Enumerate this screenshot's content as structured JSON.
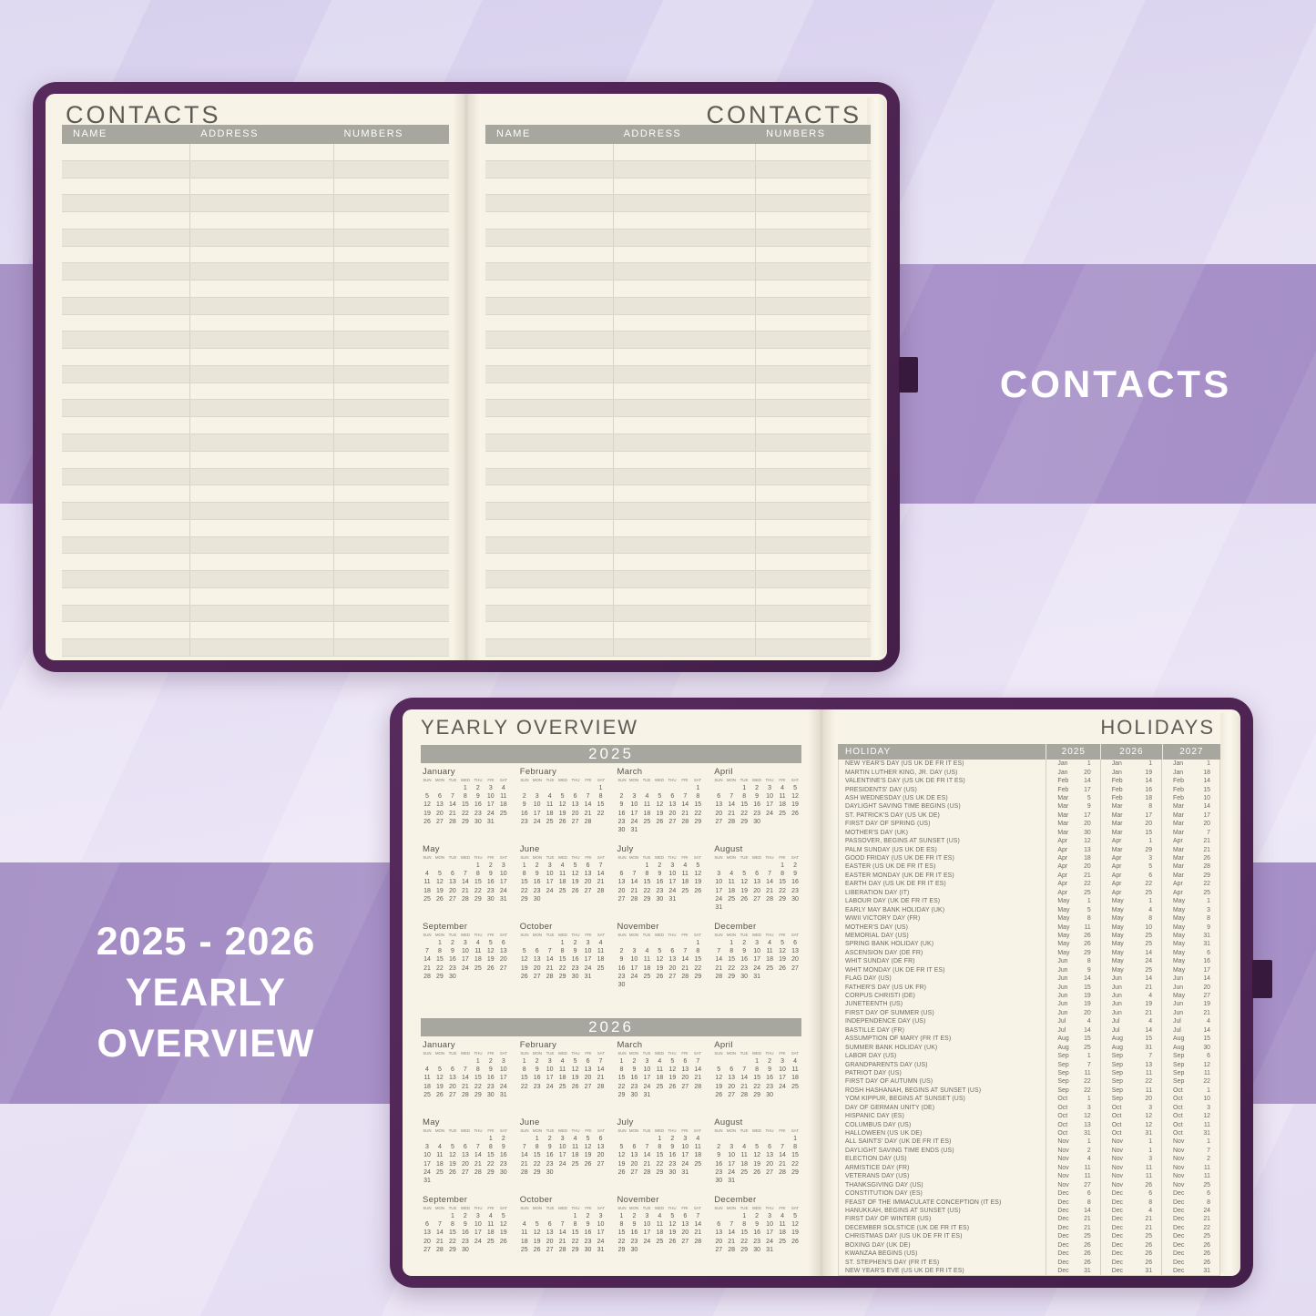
{
  "colors": {
    "cover": "#4f2454",
    "pen_loop": "#38193e",
    "paper": "#f8f3e7",
    "header_gray": "#a8a79f",
    "row_alt": "#eae5d9",
    "band_purple": "#a690c8",
    "title_text": "#5c5b55",
    "body_text": "#6b6a62"
  },
  "captions": {
    "contacts": "CONTACTS",
    "yearly_line1": "2025 - 2026",
    "yearly_line2": "YEARLY OVERVIEW"
  },
  "contacts": {
    "title": "CONTACTS",
    "columns": [
      "NAME",
      "ADDRESS",
      "NUMBERS"
    ],
    "row_count": 30
  },
  "yearly": {
    "title": "YEARLY OVERVIEW",
    "dow": [
      "SUN",
      "MON",
      "TUE",
      "WED",
      "THU",
      "FRI",
      "SAT"
    ],
    "years": [
      {
        "label": "2025",
        "months": [
          {
            "n": "January",
            "o": 3,
            "d": 31
          },
          {
            "n": "February",
            "o": 6,
            "d": 28
          },
          {
            "n": "March",
            "o": 6,
            "d": 31
          },
          {
            "n": "April",
            "o": 2,
            "d": 30
          },
          {
            "n": "May",
            "o": 4,
            "d": 31
          },
          {
            "n": "June",
            "o": 0,
            "d": 30
          },
          {
            "n": "July",
            "o": 2,
            "d": 31
          },
          {
            "n": "August",
            "o": 5,
            "d": 31
          },
          {
            "n": "September",
            "o": 1,
            "d": 30
          },
          {
            "n": "October",
            "o": 3,
            "d": 31
          },
          {
            "n": "November",
            "o": 6,
            "d": 30
          },
          {
            "n": "December",
            "o": 1,
            "d": 31
          }
        ]
      },
      {
        "label": "2026",
        "months": [
          {
            "n": "January",
            "o": 4,
            "d": 31
          },
          {
            "n": "February",
            "o": 0,
            "d": 28
          },
          {
            "n": "March",
            "o": 0,
            "d": 31
          },
          {
            "n": "April",
            "o": 3,
            "d": 30
          },
          {
            "n": "May",
            "o": 5,
            "d": 31
          },
          {
            "n": "June",
            "o": 1,
            "d": 30
          },
          {
            "n": "July",
            "o": 3,
            "d": 31
          },
          {
            "n": "August",
            "o": 6,
            "d": 31
          },
          {
            "n": "September",
            "o": 2,
            "d": 30
          },
          {
            "n": "October",
            "o": 4,
            "d": 31
          },
          {
            "n": "November",
            "o": 0,
            "d": 30
          },
          {
            "n": "December",
            "o": 2,
            "d": 31
          }
        ]
      }
    ]
  },
  "holidays": {
    "title": "HOLIDAYS",
    "columns": [
      "HOLIDAY",
      "2025",
      "2026",
      "2027"
    ],
    "rows": [
      [
        "NEW YEAR'S DAY (US UK DE FR IT ES)",
        "Jan",
        1,
        "Jan",
        1,
        "Jan",
        1
      ],
      [
        "MARTIN LUTHER KING, JR. DAY (US)",
        "Jan",
        20,
        "Jan",
        19,
        "Jan",
        18
      ],
      [
        "VALENTINE'S DAY (US UK DE FR IT ES)",
        "Feb",
        14,
        "Feb",
        14,
        "Feb",
        14
      ],
      [
        "PRESIDENTS' DAY (US)",
        "Feb",
        17,
        "Feb",
        16,
        "Feb",
        15
      ],
      [
        "ASH WEDNESDAY (US UK DE ES)",
        "Mar",
        5,
        "Feb",
        18,
        "Feb",
        10
      ],
      [
        "DAYLIGHT SAVING TIME BEGINS (US)",
        "Mar",
        9,
        "Mar",
        8,
        "Mar",
        14
      ],
      [
        "ST. PATRICK'S DAY (US UK DE)",
        "Mar",
        17,
        "Mar",
        17,
        "Mar",
        17
      ],
      [
        "FIRST DAY OF SPRING (US)",
        "Mar",
        20,
        "Mar",
        20,
        "Mar",
        20
      ],
      [
        "MOTHER'S DAY (UK)",
        "Mar",
        30,
        "Mar",
        15,
        "Mar",
        7
      ],
      [
        "PASSOVER, BEGINS AT SUNSET (US)",
        "Apr",
        12,
        "Apr",
        1,
        "Apr",
        21
      ],
      [
        "PALM SUNDAY (US UK DE ES)",
        "Apr",
        13,
        "Mar",
        29,
        "Mar",
        21
      ],
      [
        "GOOD FRIDAY (US UK DE FR IT ES)",
        "Apr",
        18,
        "Apr",
        3,
        "Mar",
        26
      ],
      [
        "EASTER (US UK DE FR IT ES)",
        "Apr",
        20,
        "Apr",
        5,
        "Mar",
        28
      ],
      [
        "EASTER MONDAY (UK DE FR IT ES)",
        "Apr",
        21,
        "Apr",
        6,
        "Mar",
        29
      ],
      [
        "EARTH DAY (US UK DE FR IT ES)",
        "Apr",
        22,
        "Apr",
        22,
        "Apr",
        22
      ],
      [
        "LIBERATION DAY (IT)",
        "Apr",
        25,
        "Apr",
        25,
        "Apr",
        25
      ],
      [
        "LABOUR DAY (UK DE FR IT ES)",
        "May",
        1,
        "May",
        1,
        "May",
        1
      ],
      [
        "EARLY MAY BANK HOLIDAY (UK)",
        "May",
        5,
        "May",
        4,
        "May",
        3
      ],
      [
        "WWII VICTORY DAY (FR)",
        "May",
        8,
        "May",
        8,
        "May",
        8
      ],
      [
        "MOTHER'S DAY (US)",
        "May",
        11,
        "May",
        10,
        "May",
        9
      ],
      [
        "MEMORIAL DAY (US)",
        "May",
        26,
        "May",
        25,
        "May",
        31
      ],
      [
        "SPRING BANK HOLIDAY (UK)",
        "May",
        26,
        "May",
        25,
        "May",
        31
      ],
      [
        "ASCENSION DAY (DE FR)",
        "May",
        29,
        "May",
        14,
        "May",
        6
      ],
      [
        "WHIT SUNDAY (DE FR)",
        "Jun",
        8,
        "May",
        24,
        "May",
        16
      ],
      [
        "WHIT MONDAY (UK DE FR IT ES)",
        "Jun",
        9,
        "May",
        25,
        "May",
        17
      ],
      [
        "FLAG DAY (US)",
        "Jun",
        14,
        "Jun",
        14,
        "Jun",
        14
      ],
      [
        "FATHER'S DAY (US UK FR)",
        "Jun",
        15,
        "Jun",
        21,
        "Jun",
        20
      ],
      [
        "CORPUS CHRISTI (DE)",
        "Jun",
        19,
        "Jun",
        4,
        "May",
        27
      ],
      [
        "JUNETEENTH (US)",
        "Jun",
        19,
        "Jun",
        19,
        "Jun",
        19
      ],
      [
        "FIRST DAY OF SUMMER (US)",
        "Jun",
        20,
        "Jun",
        21,
        "Jun",
        21
      ],
      [
        "INDEPENDENCE DAY (US)",
        "Jul",
        4,
        "Jul",
        4,
        "Jul",
        4
      ],
      [
        "BASTILLE DAY (FR)",
        "Jul",
        14,
        "Jul",
        14,
        "Jul",
        14
      ],
      [
        "ASSUMPTION OF MARY (FR IT ES)",
        "Aug",
        15,
        "Aug",
        15,
        "Aug",
        15
      ],
      [
        "SUMMER BANK HOLIDAY (UK)",
        "Aug",
        25,
        "Aug",
        31,
        "Aug",
        30
      ],
      [
        "LABOR DAY (US)",
        "Sep",
        1,
        "Sep",
        7,
        "Sep",
        6
      ],
      [
        "GRANDPARENTS DAY (US)",
        "Sep",
        7,
        "Sep",
        13,
        "Sep",
        12
      ],
      [
        "PATRIOT DAY (US)",
        "Sep",
        11,
        "Sep",
        11,
        "Sep",
        11
      ],
      [
        "FIRST DAY OF AUTUMN (US)",
        "Sep",
        22,
        "Sep",
        22,
        "Sep",
        22
      ],
      [
        "ROSH HASHANAH, BEGINS AT SUNSET (US)",
        "Sep",
        22,
        "Sep",
        11,
        "Oct",
        1
      ],
      [
        "YOM KIPPUR, BEGINS AT SUNSET (US)",
        "Oct",
        1,
        "Sep",
        20,
        "Oct",
        10
      ],
      [
        "DAY OF GERMAN UNITY (DE)",
        "Oct",
        3,
        "Oct",
        3,
        "Oct",
        3
      ],
      [
        "HISPANIC DAY (ES)",
        "Oct",
        12,
        "Oct",
        12,
        "Oct",
        12
      ],
      [
        "COLUMBUS DAY (US)",
        "Oct",
        13,
        "Oct",
        12,
        "Oct",
        11
      ],
      [
        "HALLOWEEN (US UK DE)",
        "Oct",
        31,
        "Oct",
        31,
        "Oct",
        31
      ],
      [
        "ALL SAINTS' DAY (UK DE FR IT ES)",
        "Nov",
        1,
        "Nov",
        1,
        "Nov",
        1
      ],
      [
        "DAYLIGHT SAVING TIME ENDS (US)",
        "Nov",
        2,
        "Nov",
        1,
        "Nov",
        7
      ],
      [
        "ELECTION DAY (US)",
        "Nov",
        4,
        "Nov",
        3,
        "Nov",
        2
      ],
      [
        "ARMISTICE DAY (FR)",
        "Nov",
        11,
        "Nov",
        11,
        "Nov",
        11
      ],
      [
        "VETERANS DAY (US)",
        "Nov",
        11,
        "Nov",
        11,
        "Nov",
        11
      ],
      [
        "THANKSGIVING DAY (US)",
        "Nov",
        27,
        "Nov",
        26,
        "Nov",
        25
      ],
      [
        "CONSTITUTION DAY (ES)",
        "Dec",
        6,
        "Dec",
        6,
        "Dec",
        6
      ],
      [
        "FEAST OF THE IMMACULATE CONCEPTION (IT ES)",
        "Dec",
        8,
        "Dec",
        8,
        "Dec",
        8
      ],
      [
        "HANUKKAH, BEGINS AT SUNSET (US)",
        "Dec",
        14,
        "Dec",
        4,
        "Dec",
        24
      ],
      [
        "FIRST DAY OF WINTER (US)",
        "Dec",
        21,
        "Dec",
        21,
        "Dec",
        21
      ],
      [
        "DECEMBER SOLSTICE (UK DE FR IT ES)",
        "Dec",
        21,
        "Dec",
        21,
        "Dec",
        22
      ],
      [
        "CHRISTMAS DAY (US UK DE FR IT ES)",
        "Dec",
        25,
        "Dec",
        25,
        "Dec",
        25
      ],
      [
        "BOXING DAY (UK DE)",
        "Dec",
        26,
        "Dec",
        26,
        "Dec",
        26
      ],
      [
        "KWANZAA BEGINS (US)",
        "Dec",
        26,
        "Dec",
        26,
        "Dec",
        26
      ],
      [
        "ST. STEPHEN'S DAY (FR IT ES)",
        "Dec",
        26,
        "Dec",
        26,
        "Dec",
        26
      ],
      [
        "NEW YEAR'S EVE (US UK DE FR IT ES)",
        "Dec",
        31,
        "Dec",
        31,
        "Dec",
        31
      ]
    ]
  }
}
